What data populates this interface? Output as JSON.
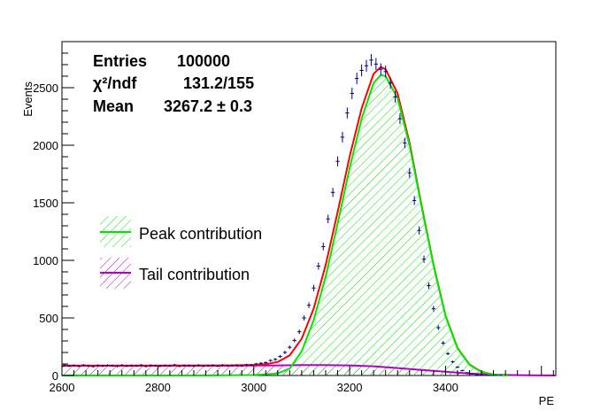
{
  "chart_data": {
    "type": "line",
    "xlabel": "PE",
    "ylabel": "Events",
    "xlim": [
      2600,
      3630
    ],
    "ylim": [
      0,
      2900
    ],
    "x_ticks": [
      2600,
      2800,
      3000,
      3200,
      3400
    ],
    "y_ticks": [
      0,
      500,
      1000,
      1500,
      2000,
      2500
    ],
    "grid": false,
    "stats": {
      "entries_label": "Entries",
      "entries_value": "100000",
      "chi2_label": "χ²/ndf",
      "chi2_value": "131.2/155",
      "mean_label": "Mean",
      "mean_value": "3267.2 ± 0.3"
    },
    "legend": {
      "placement": "left-middle",
      "entries": [
        {
          "label": "Peak contribution",
          "color": "#00e600"
        },
        {
          "label": "Tail contribution",
          "color": "#b400c8"
        }
      ]
    },
    "colors": {
      "data": "#000080",
      "total": "#ff0000",
      "peak": "#00e600",
      "tail": "#b400c8"
    },
    "series": [
      {
        "role": "data",
        "x": [
          2605,
          2615,
          2625,
          2635,
          2645,
          2655,
          2665,
          2675,
          2685,
          2695,
          2705,
          2715,
          2725,
          2735,
          2745,
          2755,
          2765,
          2775,
          2785,
          2795,
          2805,
          2815,
          2825,
          2835,
          2845,
          2855,
          2865,
          2875,
          2885,
          2895,
          2905,
          2915,
          2925,
          2935,
          2945,
          2955,
          2965,
          2975,
          2985,
          2995,
          3005,
          3015,
          3025,
          3035,
          3045,
          3055,
          3065,
          3075,
          3085,
          3095,
          3105,
          3115,
          3125,
          3135,
          3145,
          3155,
          3165,
          3175,
          3185,
          3195,
          3205,
          3215,
          3225,
          3235,
          3245,
          3255,
          3265,
          3275,
          3285,
          3295,
          3305,
          3315,
          3325,
          3335,
          3345,
          3355,
          3365,
          3375,
          3385,
          3395,
          3405,
          3415,
          3425,
          3435,
          3445,
          3455,
          3465,
          3475,
          3485,
          3495,
          3505,
          3515
        ],
        "y": [
          86,
          82,
          88,
          80,
          90,
          84,
          78,
          87,
          83,
          88,
          85,
          80,
          89,
          82,
          86,
          84,
          90,
          79,
          88,
          85,
          82,
          86,
          84,
          92,
          80,
          87,
          85,
          83,
          89,
          84,
          86,
          88,
          82,
          90,
          85,
          87,
          88,
          84,
          92,
          90,
          100,
          106,
          112,
          130,
          140,
          165,
          200,
          245,
          305,
          380,
          500,
          610,
          760,
          950,
          1120,
          1360,
          1590,
          1860,
          2070,
          2280,
          2450,
          2580,
          2650,
          2690,
          2740,
          2705,
          2660,
          2640,
          2540,
          2420,
          2230,
          2020,
          1760,
          1520,
          1260,
          1010,
          780,
          580,
          415,
          282,
          190,
          118,
          72,
          43,
          24,
          13,
          6,
          3,
          1,
          0,
          0,
          0
        ]
      },
      {
        "role": "total",
        "x": [
          2600,
          2650,
          2700,
          2750,
          2800,
          2850,
          2900,
          2950,
          3000,
          3025,
          3050,
          3075,
          3100,
          3125,
          3150,
          3175,
          3200,
          3225,
          3250,
          3265,
          3275,
          3300,
          3325,
          3350,
          3375,
          3400,
          3425,
          3450,
          3475,
          3500,
          3530
        ],
        "y": [
          85,
          85,
          85,
          85,
          85,
          86,
          87,
          88,
          92,
          98,
          118,
          175,
          320,
          580,
          960,
          1420,
          1900,
          2320,
          2620,
          2680,
          2660,
          2450,
          2020,
          1480,
          960,
          520,
          240,
          95,
          32,
          8,
          2
        ]
      },
      {
        "role": "peak",
        "x": [
          2600,
          2900,
          3000,
          3050,
          3075,
          3100,
          3125,
          3150,
          3175,
          3200,
          3225,
          3250,
          3265,
          3275,
          3300,
          3325,
          3350,
          3375,
          3400,
          3425,
          3450,
          3475,
          3500,
          3530
        ],
        "y": [
          0,
          0,
          4,
          18,
          60,
          210,
          480,
          860,
          1320,
          1800,
          2230,
          2540,
          2610,
          2600,
          2410,
          2000,
          1470,
          955,
          518,
          238,
          92,
          30,
          7,
          1
        ]
      },
      {
        "role": "tail",
        "x": [
          2600,
          2700,
          2800,
          2900,
          3000,
          3050,
          3100,
          3150,
          3200,
          3250,
          3300,
          3350,
          3400,
          3450,
          3500,
          3550,
          3600,
          3630
        ],
        "y": [
          85,
          85,
          85,
          85,
          87,
          88,
          90,
          90,
          88,
          80,
          65,
          48,
          32,
          18,
          8,
          3,
          1,
          0
        ]
      }
    ]
  }
}
